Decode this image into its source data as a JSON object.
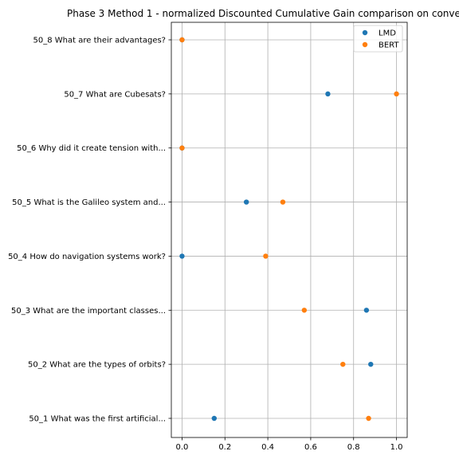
{
  "chart_data": {
    "type": "scatter",
    "title": "Phase 3 Method 1 - normalized Discounted Cumulative Gain comparison on conve",
    "xlabel": "",
    "ylabel": "",
    "xlim": [
      -0.05,
      1.05
    ],
    "xticks": [
      "0.0",
      "0.2",
      "0.4",
      "0.6",
      "0.8",
      "1.0"
    ],
    "grid": true,
    "legend_position": "upper-right",
    "categories": [
      "50_1 What was the first artificial...",
      "50_2 What are the types of orbits?",
      "50_3 What are the important classes...",
      "50_4 How do navigation systems work?",
      "50_5 What is the Galileo system and...",
      "50_6 Why did it create tension with...",
      "50_7 What are Cubesats?",
      "50_8 What are their advantages?"
    ],
    "series": [
      {
        "name": "LMD",
        "color": "#1f77b4",
        "values": [
          0.15,
          0.88,
          0.86,
          0.0,
          0.3,
          0.0,
          0.68,
          0.0
        ]
      },
      {
        "name": "BERT",
        "color": "#ff7f0e",
        "values": [
          0.87,
          0.75,
          0.57,
          0.39,
          0.47,
          0.0,
          1.0,
          0.0
        ]
      }
    ]
  }
}
